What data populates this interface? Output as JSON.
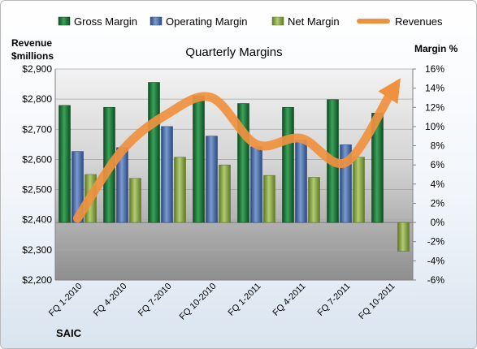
{
  "chart_data": {
    "type": "bar",
    "title": "Quarterly Margins",
    "categories": [
      "FQ 1-2010",
      "FQ 4-2010",
      "FQ 7-2010",
      "FQ 10-2010",
      "FQ 1-2011",
      "FQ 4-2011",
      "FQ 7-2011",
      "FQ 10-2011"
    ],
    "series": [
      {
        "name": "Gross Margin",
        "type": "bar",
        "axis": "right",
        "unit": "%",
        "values": [
          12.2,
          12.0,
          14.6,
          13.2,
          12.4,
          12.0,
          12.8,
          11.4
        ]
      },
      {
        "name": "Operating Margin",
        "type": "bar",
        "axis": "right",
        "unit": "%",
        "values": [
          7.4,
          7.8,
          10.0,
          9.0,
          7.9,
          8.6,
          8.1,
          null
        ]
      },
      {
        "name": "Net Margin",
        "type": "bar",
        "axis": "right",
        "unit": "%",
        "values": [
          5.0,
          4.6,
          6.8,
          6.0,
          4.9,
          4.7,
          6.8,
          -3.0
        ]
      },
      {
        "name": "Revenues",
        "type": "line",
        "axis": "left",
        "unit": "$millions",
        "values": [
          2405,
          2630,
          2750,
          2805,
          2650,
          2670,
          2590,
          2818
        ]
      }
    ],
    "y_left": {
      "label_line1": "Revenue",
      "label_line2": "$millions",
      "range": [
        2200,
        2900
      ],
      "ticks": [
        "$2,900",
        "$2,800",
        "$2,700",
        "$2,600",
        "$2,500",
        "$2,400",
        "$2,300",
        "$2,200"
      ]
    },
    "y_right": {
      "label": "Margin %",
      "range": [
        -6,
        16
      ],
      "ticks": [
        "16%",
        "14%",
        "12%",
        "10%",
        "8%",
        "6%",
        "4%",
        "2%",
        "0%",
        "-2%",
        "-4%",
        "-6%"
      ]
    },
    "legend_position": "top",
    "colors": {
      "Gross Margin": "#1f7a3c",
      "Operating Margin": "#4e73b0",
      "Net Margin": "#8aa64a",
      "Revenues": "#f0913f"
    }
  },
  "footer": {
    "company": "SAIC"
  }
}
